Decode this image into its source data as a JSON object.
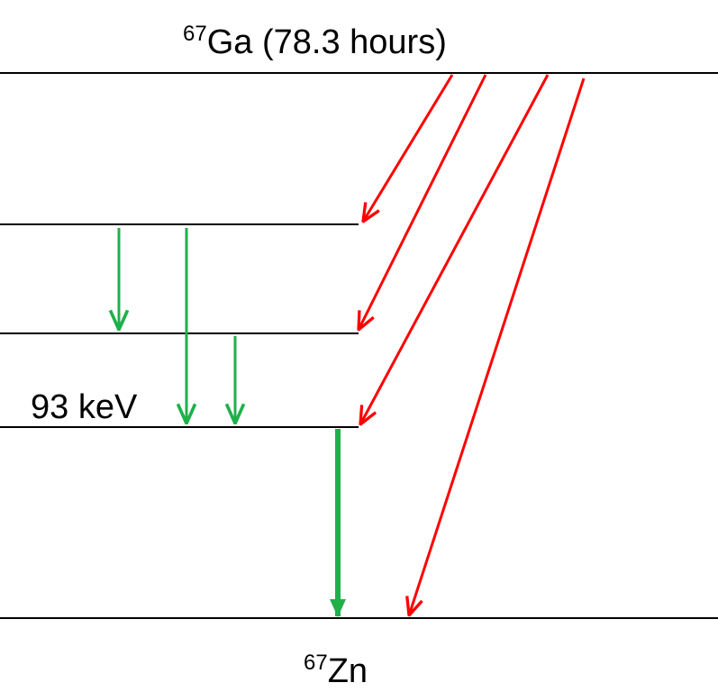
{
  "parent": {
    "mass_number": "67",
    "symbol": "Ga",
    "half_life": "(78.3 hours)"
  },
  "daughter": {
    "mass_number": "67",
    "symbol": "Zn"
  },
  "levels": [
    {
      "id": "parent-level",
      "label": ""
    },
    {
      "id": "excited-level-3",
      "label": ""
    },
    {
      "id": "excited-level-2",
      "label": ""
    },
    {
      "id": "excited-level-1",
      "label": "93 keV"
    },
    {
      "id": "ground-level",
      "label": ""
    }
  ],
  "colors": {
    "level_line": "#000000",
    "electron_capture_arrow": "#ff0000",
    "gamma_arrow": "#1fb04a"
  },
  "transitions": {
    "electron_capture": [
      {
        "from": "parent-level",
        "to": "excited-level-3"
      },
      {
        "from": "parent-level",
        "to": "excited-level-2"
      },
      {
        "from": "parent-level",
        "to": "excited-level-1"
      },
      {
        "from": "parent-level",
        "to": "ground-level"
      }
    ],
    "gamma": [
      {
        "from": "excited-level-3",
        "to": "excited-level-2"
      },
      {
        "from": "excited-level-3",
        "to": "excited-level-1"
      },
      {
        "from": "excited-level-2",
        "to": "excited-level-1"
      },
      {
        "from": "excited-level-1",
        "to": "ground-level"
      }
    ]
  }
}
